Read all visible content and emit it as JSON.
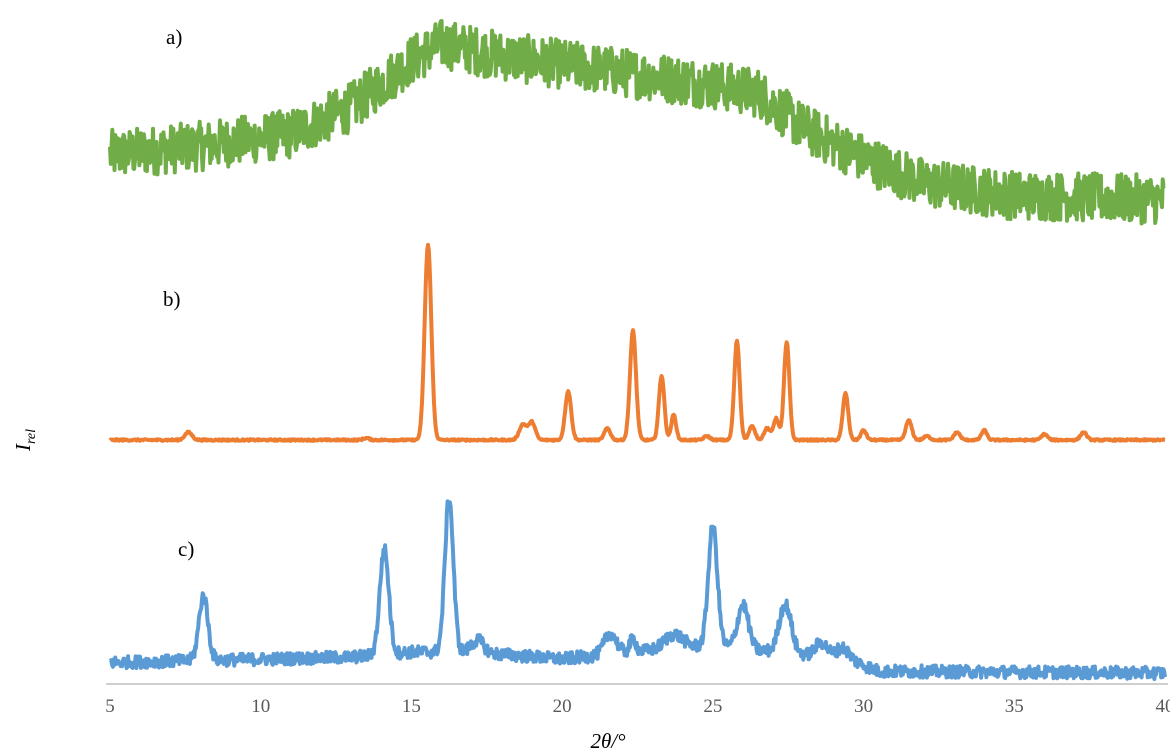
{
  "chart_data": {
    "type": "line",
    "xlabel": "2θ/°",
    "ylabel": "I",
    "ylabel_subscript": "rel",
    "xlim": [
      5,
      40
    ],
    "xticks": [
      "5",
      "10",
      "15",
      "20",
      "25",
      "30",
      "35",
      "40"
    ],
    "grid": false,
    "colors": {
      "a": "#70ad47",
      "b": "#ed7d31",
      "c": "#5b9bd5",
      "axis": "#bfbfbf"
    },
    "panels": [
      {
        "label": "a)",
        "color": "#70ad47",
        "noise": 0.12,
        "baseline": [
          [
            5,
            0.32
          ],
          [
            8,
            0.36
          ],
          [
            11,
            0.42
          ],
          [
            13,
            0.55
          ],
          [
            15,
            0.78
          ],
          [
            16,
            0.86
          ],
          [
            18,
            0.8
          ],
          [
            21,
            0.74
          ],
          [
            23,
            0.7
          ],
          [
            25,
            0.66
          ],
          [
            26.5,
            0.62
          ],
          [
            28,
            0.45
          ],
          [
            30,
            0.3
          ],
          [
            32,
            0.18
          ],
          [
            35,
            0.12
          ],
          [
            40,
            0.1
          ]
        ]
      },
      {
        "label": "b)",
        "color": "#ed7d31",
        "noise": 0.004,
        "peaks": [
          [
            7.6,
            0.04,
            0.12
          ],
          [
            13.5,
            0.01,
            0.1
          ],
          [
            15.55,
            1.0,
            0.11
          ],
          [
            18.7,
            0.08,
            0.12
          ],
          [
            19.0,
            0.09,
            0.11
          ],
          [
            20.2,
            0.25,
            0.1
          ],
          [
            21.5,
            0.06,
            0.1
          ],
          [
            22.35,
            0.56,
            0.1
          ],
          [
            23.3,
            0.33,
            0.09
          ],
          [
            23.7,
            0.13,
            0.08
          ],
          [
            24.8,
            0.02,
            0.1
          ],
          [
            25.8,
            0.51,
            0.09
          ],
          [
            26.3,
            0.07,
            0.1
          ],
          [
            26.8,
            0.06,
            0.1
          ],
          [
            27.1,
            0.11,
            0.09
          ],
          [
            27.45,
            0.5,
            0.09
          ],
          [
            29.4,
            0.24,
            0.09
          ],
          [
            30.0,
            0.05,
            0.09
          ],
          [
            31.5,
            0.1,
            0.1
          ],
          [
            32.1,
            0.02,
            0.1
          ],
          [
            33.1,
            0.04,
            0.1
          ],
          [
            34.0,
            0.05,
            0.09
          ],
          [
            36.0,
            0.03,
            0.1
          ],
          [
            37.3,
            0.04,
            0.1
          ]
        ]
      },
      {
        "label": "c)",
        "color": "#5b9bd5",
        "noise": 0.035,
        "baseline": [
          [
            5,
            0.1
          ],
          [
            13,
            0.13
          ],
          [
            15,
            0.16
          ],
          [
            17,
            0.16
          ],
          [
            20,
            0.12
          ],
          [
            23,
            0.17
          ],
          [
            25,
            0.2
          ],
          [
            27,
            0.16
          ],
          [
            29.5,
            0.12
          ],
          [
            30.5,
            0.05
          ],
          [
            40,
            0.04
          ]
        ],
        "peaks": [
          [
            8.1,
            0.37,
            0.15
          ],
          [
            14.1,
            0.6,
            0.15
          ],
          [
            16.25,
            0.88,
            0.14
          ],
          [
            17.2,
            0.07,
            0.2
          ],
          [
            21.6,
            0.12,
            0.2
          ],
          [
            22.35,
            0.08,
            0.1
          ],
          [
            23.7,
            0.08,
            0.3
          ],
          [
            25.0,
            0.68,
            0.15
          ],
          [
            26.0,
            0.25,
            0.18
          ],
          [
            27.4,
            0.28,
            0.2
          ],
          [
            28.6,
            0.08,
            0.2
          ],
          [
            29.3,
            0.06,
            0.2
          ]
        ]
      }
    ]
  }
}
